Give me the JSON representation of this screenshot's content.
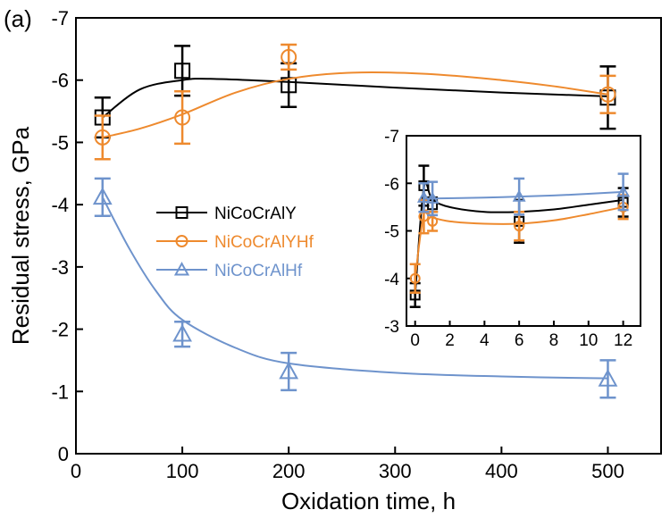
{
  "panel_label": "(a)",
  "colors": {
    "NiCoCrAlY": "#000000",
    "NiCoCrAlYHf": "#ee8a2e",
    "NiCoCrAlHf": "#6e93cc",
    "axis": "#000000"
  },
  "chart_data": [
    {
      "type": "line",
      "role": "main",
      "xlabel": "Oxidation time, h",
      "ylabel": "Residual stress, GPa",
      "xlim": [
        0,
        550
      ],
      "ylim": [
        0,
        -7
      ],
      "x_ticks": [
        0,
        100,
        200,
        300,
        400,
        500
      ],
      "x_tick_labels": [
        "0",
        "100",
        "200",
        "300",
        "400",
        "500"
      ],
      "y_ticks": [
        0,
        -1,
        -2,
        -3,
        -4,
        -5,
        -6,
        -7
      ],
      "y_tick_labels": [
        "0",
        "-1",
        "-2",
        "-3",
        "-4",
        "-5",
        "-6",
        "-7"
      ],
      "legend_position": "center-left",
      "series": [
        {
          "name": "NiCoCrAlY",
          "marker": "square",
          "color": "#000000",
          "points": [
            {
              "x": 25,
              "y": -5.4,
              "err": 0.32
            },
            {
              "x": 100,
              "y": -6.15,
              "err": 0.4
            },
            {
              "x": 200,
              "y": -5.92,
              "err": 0.35
            },
            {
              "x": 500,
              "y": -5.72,
              "err": 0.5
            }
          ],
          "fit": [
            [
              25,
              -5.4
            ],
            [
              60,
              -5.85
            ],
            [
              100,
              -6.0
            ],
            [
              130,
              -6.02
            ],
            [
              200,
              -5.97
            ],
            [
              300,
              -5.88
            ],
            [
              400,
              -5.8
            ],
            [
              500,
              -5.74
            ]
          ]
        },
        {
          "name": "NiCoCrAlYHf",
          "marker": "circle",
          "color": "#ee8a2e",
          "points": [
            {
              "x": 25,
              "y": -5.08,
              "err": 0.35
            },
            {
              "x": 100,
              "y": -5.4,
              "err": 0.42
            },
            {
              "x": 200,
              "y": -6.37,
              "err": 0.2
            },
            {
              "x": 500,
              "y": -5.77,
              "err": 0.3
            }
          ],
          "fit": [
            [
              25,
              -5.08
            ],
            [
              60,
              -5.22
            ],
            [
              100,
              -5.45
            ],
            [
              150,
              -5.8
            ],
            [
              200,
              -6.02
            ],
            [
              260,
              -6.12
            ],
            [
              330,
              -6.1
            ],
            [
              400,
              -6.0
            ],
            [
              450,
              -5.9
            ],
            [
              500,
              -5.77
            ]
          ]
        },
        {
          "name": "NiCoCrAlHf",
          "marker": "triangle",
          "color": "#6e93cc",
          "points": [
            {
              "x": 25,
              "y": -4.12,
              "err": 0.3
            },
            {
              "x": 100,
              "y": -1.92,
              "err": 0.2
            },
            {
              "x": 200,
              "y": -1.32,
              "err": 0.3
            },
            {
              "x": 500,
              "y": -1.2,
              "err": 0.3
            }
          ],
          "fit": [
            [
              25,
              -4.12
            ],
            [
              50,
              -3.3
            ],
            [
              75,
              -2.62
            ],
            [
              100,
              -2.15
            ],
            [
              150,
              -1.7
            ],
            [
              200,
              -1.45
            ],
            [
              300,
              -1.3
            ],
            [
              400,
              -1.24
            ],
            [
              500,
              -1.21
            ]
          ]
        }
      ]
    },
    {
      "type": "line",
      "role": "inset",
      "xlim": [
        -0.5,
        13
      ],
      "ylim": [
        -3,
        -7
      ],
      "x_ticks": [
        0,
        2,
        4,
        6,
        8,
        10,
        12
      ],
      "x_tick_labels": [
        "0",
        "2",
        "4",
        "6",
        "8",
        "10",
        "12"
      ],
      "y_ticks": [
        -3,
        -4,
        -5,
        -6,
        -7
      ],
      "y_tick_labels": [
        "-3",
        "-4",
        "-5",
        "-6",
        "-7"
      ],
      "series": [
        {
          "name": "NiCoCrAlY",
          "marker": "square",
          "color": "#000000",
          "points": [
            {
              "x": 0,
              "y": -3.65,
              "err": 0.25
            },
            {
              "x": 0.5,
              "y": -5.95,
              "err": 0.42
            },
            {
              "x": 1,
              "y": -5.55,
              "err": 0.15
            },
            {
              "x": 6,
              "y": -5.2,
              "err": 0.45
            },
            {
              "x": 12,
              "y": -5.6,
              "err": 0.3
            }
          ],
          "fit": [
            [
              0,
              -3.65
            ],
            [
              0.5,
              -5.9
            ],
            [
              1,
              -5.65
            ],
            [
              2,
              -5.5
            ],
            [
              4,
              -5.4
            ],
            [
              6,
              -5.4
            ],
            [
              8,
              -5.45
            ],
            [
              10,
              -5.55
            ],
            [
              12,
              -5.65
            ]
          ]
        },
        {
          "name": "NiCoCrAlYHf",
          "marker": "circle",
          "color": "#ee8a2e",
          "points": [
            {
              "x": 0,
              "y": -4.0,
              "err": 0.3
            },
            {
              "x": 0.5,
              "y": -5.3,
              "err": 0.35
            },
            {
              "x": 1,
              "y": -5.2,
              "err": 0.2
            },
            {
              "x": 6,
              "y": -5.1,
              "err": 0.3
            },
            {
              "x": 12,
              "y": -5.5,
              "err": 0.25
            }
          ],
          "fit": [
            [
              0,
              -4.0
            ],
            [
              0.5,
              -5.35
            ],
            [
              1,
              -5.28
            ],
            [
              2,
              -5.2
            ],
            [
              4,
              -5.15
            ],
            [
              6,
              -5.15
            ],
            [
              8,
              -5.22
            ],
            [
              10,
              -5.35
            ],
            [
              12,
              -5.5
            ]
          ]
        },
        {
          "name": "NiCoCrAlHf",
          "marker": "triangle",
          "color": "#6e93cc",
          "points": [
            {
              "x": 0.5,
              "y": -5.7,
              "err": 0.3
            },
            {
              "x": 1,
              "y": -5.68,
              "err": 0.35
            },
            {
              "x": 6,
              "y": -5.72,
              "err": 0.38
            },
            {
              "x": 12,
              "y": -5.82,
              "err": 0.38
            }
          ],
          "fit": [
            [
              0.5,
              -5.68
            ],
            [
              1,
              -5.68
            ],
            [
              4,
              -5.7
            ],
            [
              6,
              -5.72
            ],
            [
              9,
              -5.76
            ],
            [
              12,
              -5.82
            ]
          ]
        }
      ]
    }
  ]
}
